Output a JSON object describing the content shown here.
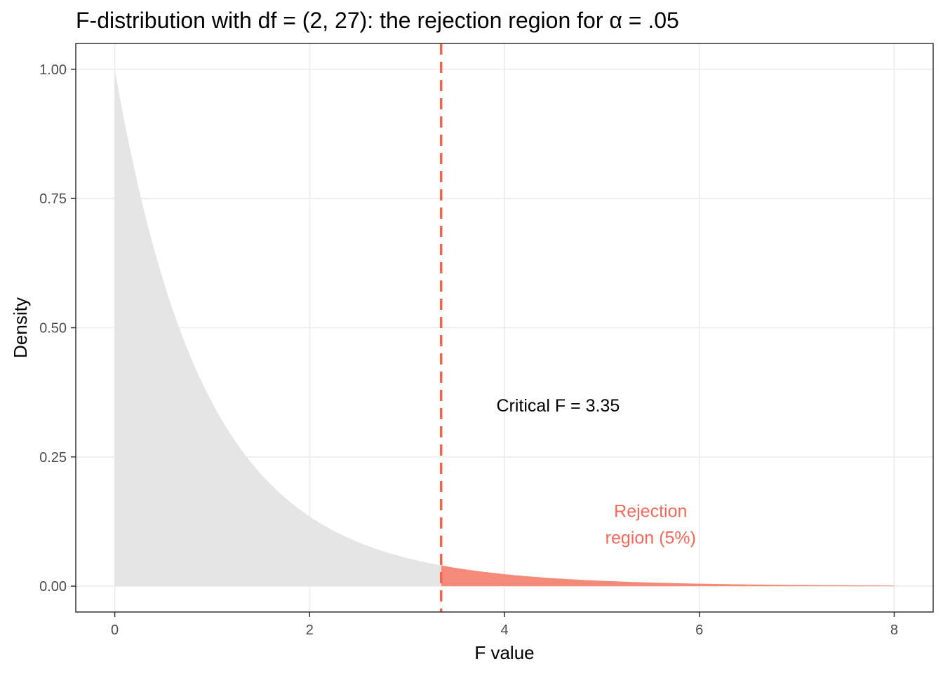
{
  "chart_data": {
    "type": "area",
    "title": "F-distribution with df = (2, 27): the rejection region for α = .05",
    "xlabel": "F value",
    "ylabel": "Density",
    "xlim": [
      -0.4,
      8.4
    ],
    "ylim": [
      -0.05,
      1.05
    ],
    "x_ticks": [
      0,
      2,
      4,
      6,
      8
    ],
    "x_tick_labels": [
      "0",
      "2",
      "4",
      "6",
      "8"
    ],
    "y_ticks": [
      0,
      0.25,
      0.5,
      0.75,
      1.0
    ],
    "y_tick_labels": [
      "0.00",
      "0.25",
      "0.50",
      "0.75",
      "1.00"
    ],
    "grid": true,
    "distribution": {
      "name": "F",
      "df1": 2,
      "df2": 27
    },
    "series": [
      {
        "name": "acceptance",
        "x": [
          0,
          0.25,
          0.5,
          0.75,
          1.0,
          1.25,
          1.5,
          1.75,
          2.0,
          2.25,
          2.5,
          2.75,
          3.0,
          3.25,
          3.35
        ],
        "y": [
          1.0,
          0.778,
          0.608,
          0.479,
          0.379,
          0.302,
          0.242,
          0.195,
          0.158,
          0.129,
          0.106,
          0.087,
          0.072,
          0.06,
          0.056
        ]
      },
      {
        "name": "rejection",
        "x": [
          3.35,
          3.5,
          4.0,
          4.5,
          5.0,
          5.5,
          6.0,
          6.5,
          7.0,
          7.5,
          8.0
        ],
        "y": [
          0.056,
          0.05,
          0.035,
          0.025,
          0.018,
          0.013,
          0.009,
          0.007,
          0.005,
          0.004,
          0.003
        ]
      }
    ],
    "critical_value": 3.35,
    "annotations": [
      {
        "lines": [
          "Critical F = 3.35"
        ],
        "x": 4.55,
        "y": 0.35
      },
      {
        "lines": [
          "Rejection",
          "region (5%)"
        ],
        "x": 5.5,
        "y": 0.12
      }
    ],
    "colors": {
      "acceptance_fill": "#e5e5e5",
      "rejection_fill": "#f68a79",
      "critical_line": "#ee6650",
      "rejection_text": "#f4685a",
      "critical_text": "#000000",
      "grid": "#ebebeb",
      "panel_border": "#333333"
    }
  }
}
